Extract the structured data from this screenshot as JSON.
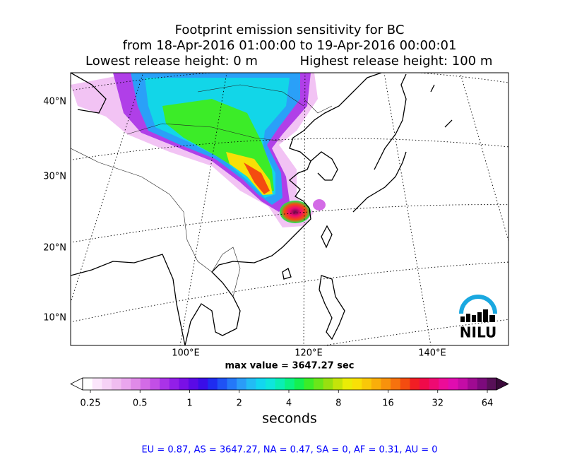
{
  "title": {
    "line1": "Footprint emission sensitivity for BC",
    "line2": "from 18-Apr-2016 01:00:00 to 19-Apr-2016 00:00:01",
    "line3_left": "Lowest release height: 0 m",
    "line3_right": "Highest release height: 100 m"
  },
  "map": {
    "lat_labels": [
      "40°N",
      "30°N",
      "20°N",
      "10°N"
    ],
    "lon_labels": [
      "100°E",
      "120°E",
      "140°E"
    ],
    "max_value_text": "max value = 3647.27 sec",
    "logo": "NILU"
  },
  "colorbar": {
    "ticks": [
      0.25,
      0.5,
      1,
      2,
      4,
      8,
      16,
      32,
      64
    ],
    "log": true,
    "label": "seconds",
    "colors": [
      "#ffffff",
      "#fbe6fb",
      "#f6d2f6",
      "#f0bdf0",
      "#eaa6ee",
      "#e08ae8",
      "#d36be6",
      "#c24fe6",
      "#aa33e8",
      "#921fe8",
      "#7a10e6",
      "#5a0ae6",
      "#3a0de8",
      "#1f2cf0",
      "#1f52f5",
      "#2478f8",
      "#2a9cf8",
      "#22bcf5",
      "#12d6f0",
      "#0ee6dc",
      "#0aeeb4",
      "#0af282",
      "#14f050",
      "#3cec28",
      "#6ae61a",
      "#98e010",
      "#c4e40a",
      "#eaec06",
      "#f8e006",
      "#fac808",
      "#faae0a",
      "#f8920c",
      "#f6720e",
      "#f44c10",
      "#f21e24",
      "#f00a4a",
      "#ee0a72",
      "#ec0c98",
      "#e00cb0",
      "#c40ca6",
      "#a00a92",
      "#7c0a7c",
      "#581058"
    ],
    "under_color": "#ffffff",
    "over_color": "#3a0a3a"
  },
  "footer": "EU = 0.87,  AS = 3647.27,  NA = 0.47,  SA = 0,  AF = 0.31,  AU = 0"
}
